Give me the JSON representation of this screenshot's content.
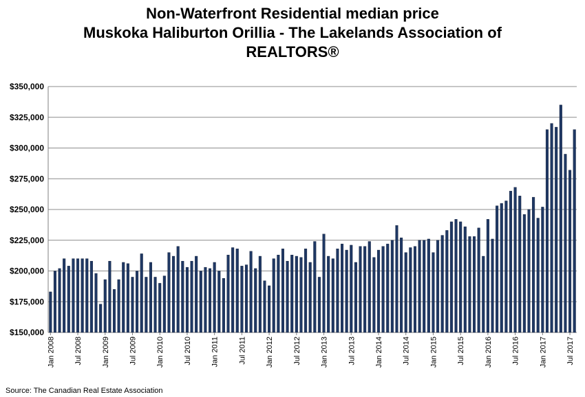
{
  "chart_data": {
    "type": "bar",
    "title_lines": [
      "Non-Waterfront Residential median price",
      "Muskoka Haliburton Orillia - The Lakelands Association of",
      "REALTORS®"
    ],
    "source": "Source: The Canadian Real Estate Association",
    "ylim": [
      150000,
      350000
    ],
    "ytick_labels": [
      "$150,000",
      "$175,000",
      "$200,000",
      "$225,000",
      "$250,000",
      "$275,000",
      "$300,000",
      "$325,000",
      "$350,000"
    ],
    "ytick_values": [
      150000,
      175000,
      200000,
      225000,
      250000,
      275000,
      300000,
      325000,
      350000
    ],
    "xtick_labels": [
      "Jan 2008",
      "Jul 2008",
      "Jan 2009",
      "Jul 2009",
      "Jan 2010",
      "Jul 2010",
      "Jan 2011",
      "Jul 2011",
      "Jan 2012",
      "Jul 2012",
      "Jan 2013",
      "Jul 2013",
      "Jan 2014",
      "Jul 2014",
      "Jan 2015",
      "Jul 2015",
      "Jan 2016",
      "Jul 2016",
      "Jan 2017",
      "Jul 2017"
    ],
    "grid": true,
    "bar_color": "#1f3864",
    "values": [
      183000,
      200000,
      202000,
      210000,
      204000,
      210000,
      210000,
      210000,
      210000,
      208000,
      198000,
      173000,
      193000,
      208000,
      185000,
      193000,
      207000,
      206000,
      195000,
      200000,
      214000,
      195000,
      207000,
      195000,
      190000,
      196000,
      215000,
      212000,
      220000,
      208000,
      203000,
      208000,
      212000,
      200000,
      203000,
      202000,
      207000,
      200000,
      194000,
      213000,
      219000,
      218000,
      204000,
      205000,
      216000,
      202000,
      212000,
      192000,
      188000,
      210000,
      213000,
      218000,
      208000,
      213000,
      212000,
      211000,
      218000,
      207000,
      224000,
      195000,
      230000,
      212000,
      210000,
      218000,
      222000,
      217000,
      221000,
      207000,
      220000,
      220000,
      224000,
      211000,
      217000,
      220000,
      222000,
      225000,
      237000,
      227000,
      215000,
      219000,
      220000,
      225000,
      225000,
      226000,
      215000,
      225000,
      229000,
      233000,
      240000,
      242000,
      240000,
      236000,
      228000,
      228000,
      235000,
      212000,
      242000,
      226000,
      253000,
      255000,
      257000,
      265000,
      268000,
      261000,
      246000,
      250000,
      260000,
      243000,
      252000,
      315000,
      320000,
      317000,
      335000,
      295000,
      282000,
      315000
    ]
  }
}
